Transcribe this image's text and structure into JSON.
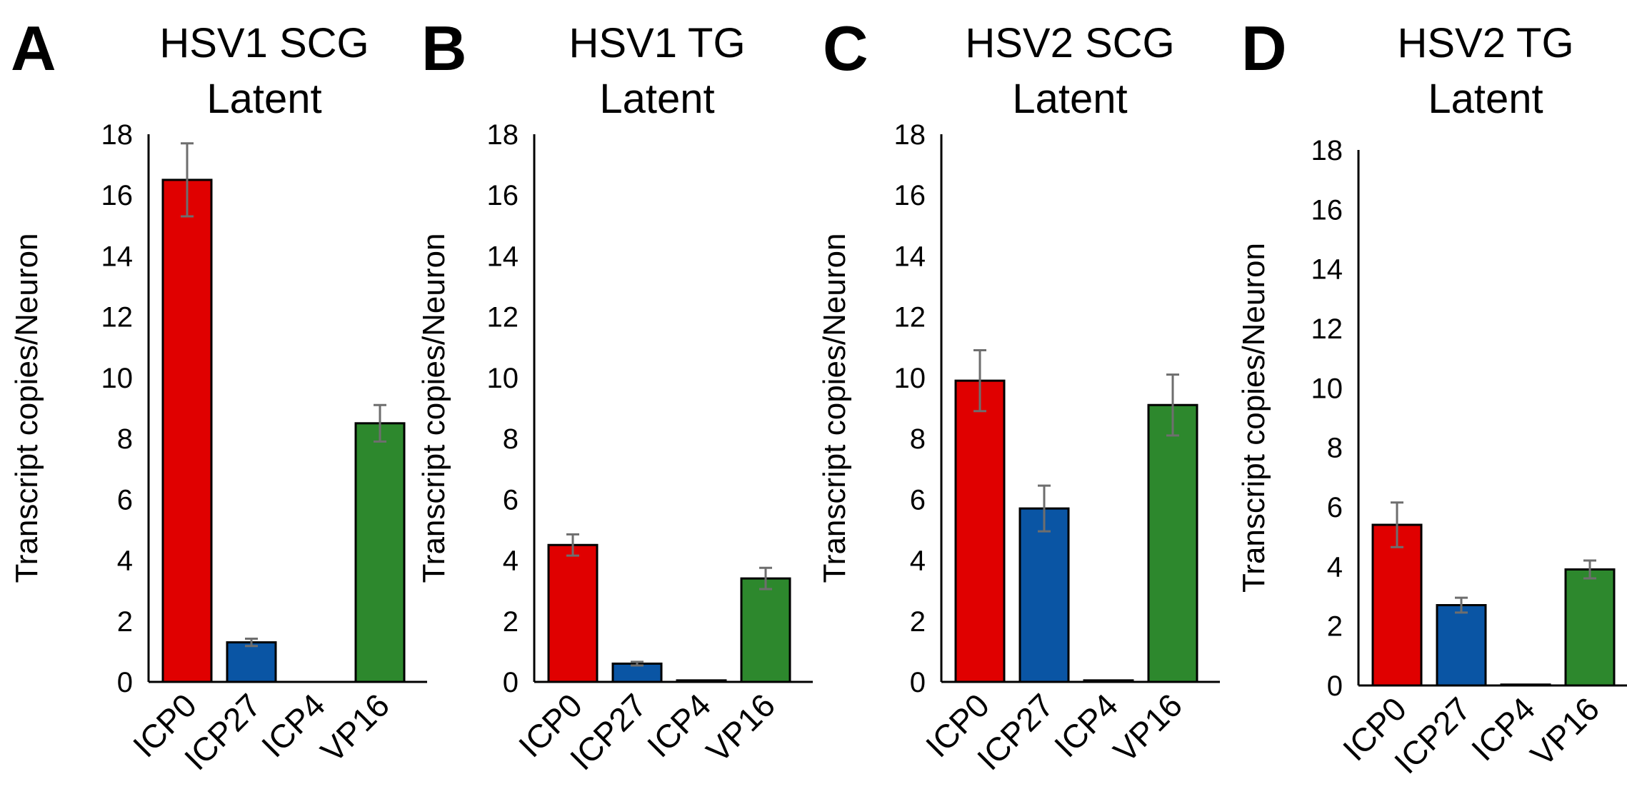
{
  "chart_data": [
    {
      "panel": "A",
      "type": "bar",
      "title": [
        "HSV1 SCG",
        "Latent"
      ],
      "ylabel": "Transcript copies/Neuron",
      "xlabel": "",
      "ylim": [
        0,
        18
      ],
      "yticks": [
        0,
        2,
        4,
        6,
        8,
        10,
        12,
        14,
        16,
        18
      ],
      "categories": [
        "ICP0",
        "ICP27",
        "ICP4",
        "VP16"
      ],
      "values": [
        16.5,
        1.3,
        0,
        8.5
      ],
      "errors": [
        1.2,
        0.12,
        0,
        0.6
      ],
      "colors": [
        "#e00000",
        "#0a55a4",
        "#0a55a4",
        "#2d882d"
      ]
    },
    {
      "panel": "B",
      "type": "bar",
      "title": [
        "HSV1 TG",
        "Latent"
      ],
      "ylabel": "Transcript copies/Neuron",
      "xlabel": "",
      "ylim": [
        0,
        18
      ],
      "yticks": [
        0,
        2,
        4,
        6,
        8,
        10,
        12,
        14,
        16,
        18
      ],
      "categories": [
        "ICP0",
        "ICP27",
        "ICP4",
        "VP16"
      ],
      "values": [
        4.5,
        0.6,
        0.05,
        3.4
      ],
      "errors": [
        0.35,
        0.06,
        0,
        0.35
      ],
      "colors": [
        "#e00000",
        "#0a55a4",
        "#0a55a4",
        "#2d882d"
      ]
    },
    {
      "panel": "C",
      "type": "bar",
      "title": [
        "HSV2 SCG",
        "Latent"
      ],
      "ylabel": "Transcript copies/Neuron",
      "xlabel": "",
      "ylim": [
        0,
        18
      ],
      "yticks": [
        0,
        2,
        4,
        6,
        8,
        10,
        12,
        14,
        16,
        18
      ],
      "categories": [
        "ICP0",
        "ICP27",
        "ICP4",
        "VP16"
      ],
      "values": [
        9.9,
        5.7,
        0.05,
        9.1
      ],
      "errors": [
        1.0,
        0.75,
        0,
        1.0
      ],
      "colors": [
        "#e00000",
        "#0a55a4",
        "#0a55a4",
        "#2d882d"
      ]
    },
    {
      "panel": "D",
      "type": "bar",
      "title": [
        "HSV2 TG",
        "Latent"
      ],
      "ylabel": "Transcript copies/Neuron",
      "xlabel": "",
      "ylim": [
        0,
        18
      ],
      "yticks": [
        0,
        2,
        4,
        6,
        8,
        10,
        12,
        14,
        16,
        18
      ],
      "categories": [
        "ICP0",
        "ICP27",
        "ICP4",
        "VP16"
      ],
      "values": [
        5.4,
        2.7,
        0.03,
        3.9
      ],
      "errors": [
        0.75,
        0.25,
        0,
        0.3
      ],
      "colors": [
        "#e00000",
        "#0a55a4",
        "#0a55a4",
        "#2d882d"
      ]
    }
  ]
}
